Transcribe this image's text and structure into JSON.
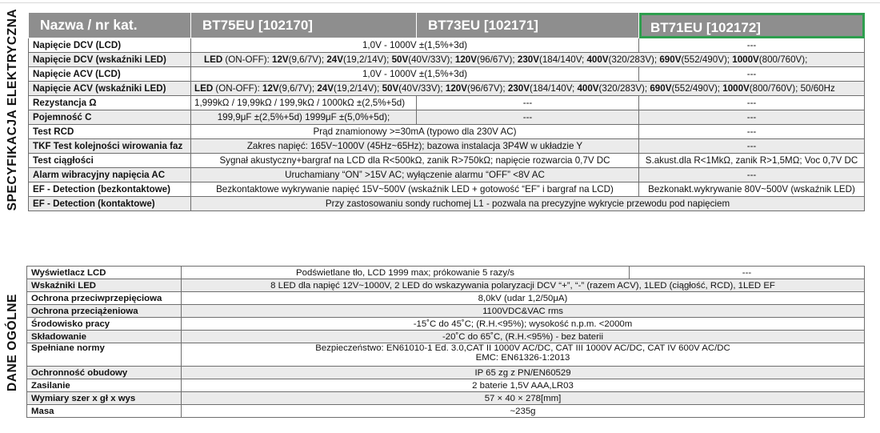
{
  "side_labels": {
    "electrical": "SPECYFIKACJA ELEKTRYCZNA",
    "general": "DANE OGÓLNE"
  },
  "header": {
    "label": "Nazwa / nr kat.",
    "models": [
      "BT75EU [102170]",
      "BT73EU [102171]",
      "BT71EU  [102172]"
    ],
    "selected_model_outline": "#2e9e4e"
  },
  "electrical": {
    "dcv_lcd": {
      "label": "Napięcie  DCV (LCD)",
      "value": "1,0V - 1000V ±(1,5%+3d)",
      "bt71": "---"
    },
    "dcv_led": {
      "label": "Napięcie  DCV (wskaźniki LED)",
      "segments": [
        {
          "t": "LED",
          "b": true
        },
        {
          "t": " (ON-OFF): ",
          "b": false
        },
        {
          "t": "12V",
          "b": true
        },
        {
          "t": "(9,6/7V); ",
          "b": false
        },
        {
          "t": "24V",
          "b": true
        },
        {
          "t": "(19,2/14V); ",
          "b": false
        },
        {
          "t": "50V",
          "b": true
        },
        {
          "t": "(40V/33V); ",
          "b": false
        },
        {
          "t": "120V",
          "b": true
        },
        {
          "t": "(96/67V); ",
          "b": false
        },
        {
          "t": "230V",
          "b": true
        },
        {
          "t": "(184/140V; ",
          "b": false
        },
        {
          "t": "400V",
          "b": true
        },
        {
          "t": "(320/283V); ",
          "b": false
        },
        {
          "t": "690V",
          "b": true
        },
        {
          "t": "(552/490V); ",
          "b": false
        },
        {
          "t": "1000V",
          "b": true
        },
        {
          "t": "(800/760V);",
          "b": false
        }
      ]
    },
    "acv_lcd": {
      "label": "Napięcie  ACV (LCD)",
      "value": "1,0V - 1000V ±(1,5%+3d)",
      "bt71": "---"
    },
    "acv_led": {
      "label": "Napięcie  ACV (wskaźniki LED)",
      "segments": [
        {
          "t": "LED",
          "b": true
        },
        {
          "t": " (ON-OFF): ",
          "b": false
        },
        {
          "t": "12V",
          "b": true
        },
        {
          "t": "(9,6/7V); ",
          "b": false
        },
        {
          "t": "24V",
          "b": true
        },
        {
          "t": "(19,2/14V); ",
          "b": false
        },
        {
          "t": "50V",
          "b": true
        },
        {
          "t": "(40V/33V); ",
          "b": false
        },
        {
          "t": "120V",
          "b": true
        },
        {
          "t": "(96/67V); ",
          "b": false
        },
        {
          "t": "230V",
          "b": true
        },
        {
          "t": "(184/140V; ",
          "b": false
        },
        {
          "t": "400V",
          "b": true
        },
        {
          "t": "(320/283V); ",
          "b": false
        },
        {
          "t": "690V",
          "b": true
        },
        {
          "t": "(552/490V); ",
          "b": false
        },
        {
          "t": "1000V",
          "b": true
        },
        {
          "t": "(800/760V); 50/60Hz",
          "b": false
        }
      ]
    },
    "resistance": {
      "label": "Rezystancja Ω",
      "bt75": "1,999kΩ / 19,99kΩ / 199,9kΩ / 1000kΩ ±(2,5%+5d)",
      "bt73": "---",
      "bt71": "---"
    },
    "capacitance": {
      "label": "Pojemność C",
      "bt75": "199,9μF ±(2,5%+5d) 1999μF ±(5,0%+5d);",
      "bt73": "---",
      "bt71": "---"
    },
    "rcd": {
      "label": "Test RCD",
      "value": "Prąd znamionowy >=30mA (typowo dla 230V AC)",
      "bt71": "---"
    },
    "tkf": {
      "label": "TKF Test kolejności wirowania faz",
      "value": "Zakres napięć: 165V~1000V (45Hz~65Hz); bazowa instalacja 3P4W w układzie Y",
      "bt71": "---"
    },
    "continuity": {
      "label": "Test ciągłości",
      "value": "Sygnał akustyczny+bargraf na LCD dla R<500kΩ, zanik R>750kΩ; napięcie rozwarcia 0,7V DC",
      "bt71": "S.akust.dla R<1MkΩ, zanik R>1,5MΩ; Voc 0,7V DC"
    },
    "vibration": {
      "label": "Alarm wibracyjny napięcia AC",
      "value": "Uruchamiany “ON” >15V AC; wyłączenie alarmu “OFF” <8V AC",
      "bt71": "---"
    },
    "ef_noncontact": {
      "label": "EF - Detection (bezkontaktowe)",
      "value": "Bezkontaktowe wykrywanie napięć 15V~500V (wskaźnik LED + gotowość “EF” i bargraf na LCD)",
      "bt71": "Bezkonakt.wykrywanie 80V~500V (wskaźnik LED)"
    },
    "ef_contact": {
      "label": "EF - Detection (kontaktowe)",
      "value": "Przy zastosowaniu sondy ruchomej L1 - pozwala na precyzyjne wykrycie przewodu pod napięciem"
    }
  },
  "general": {
    "lcd": {
      "label": "Wyświetlacz LCD",
      "value": "Podświetlane tło, LCD 1999 max; prókowanie 5 razy/s",
      "bt71": "---"
    },
    "leds": {
      "label": "Wskaźniki LED",
      "value": "8 LED dla napięć 12V~1000V, 2 LED do wskazywania polaryzacji DCV “+”, “-” (razem ACV), 1LED (ciągłość, RCD), 1LED EF"
    },
    "surge": {
      "label": "Ochrona przeciwprzepięciowa",
      "value": "8,0kV (udar 1,2/50μA)"
    },
    "overload": {
      "label": "Ochrona przeciążeniowa",
      "value": "1100VDC&VAC rms"
    },
    "environment": {
      "label": "Środowisko pracy",
      "value": "-15˚C do 45˚C; (R.H.<95%); wysokość n.p.m. <2000m"
    },
    "storage": {
      "label": "Składowanie",
      "value": "-20˚C do 65˚C, (R.H.<95%) - bez baterii"
    },
    "standards": {
      "label": "Spełniane normy",
      "line1": "Bezpieczeństwo: EN61010-1  Ed. 3.0,CAT II 1000V AC/DC, CAT III 1000V AC/DC, CAT IV 600V AC/DC",
      "line2": "EMC: EN61326-1:2013"
    },
    "ip": {
      "label": "Ochronność obudowy",
      "value": "IP 65 zg z PN/EN60529"
    },
    "power": {
      "label": "Zasilanie",
      "value": "2 baterie 1,5V AAA,LR03"
    },
    "dimensions": {
      "label": "Wymiary szer x gł x wys",
      "value": "57 × 40 × 278[mm]"
    },
    "mass": {
      "label": "Masa",
      "value": "~235g"
    }
  }
}
